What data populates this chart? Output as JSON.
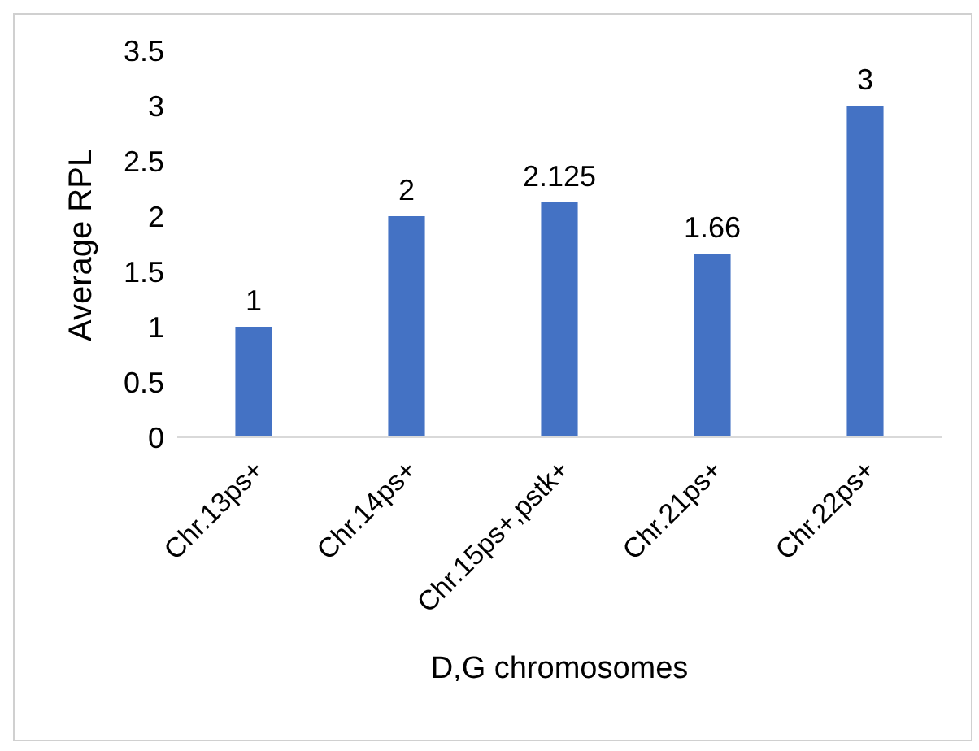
{
  "chart_data": {
    "type": "bar",
    "xlabel": "D,G chromosomes",
    "ylabel": "Average RPL",
    "categories": [
      "Chr.13ps+",
      "Chr.14ps+",
      "Chr.15ps+,pstk+",
      "Chr.21ps+",
      "Chr.22ps+"
    ],
    "values": [
      1,
      2,
      2.125,
      1.66,
      3
    ],
    "color": "#4472c4",
    "ylim": [
      0,
      3.5
    ],
    "yticks": [
      0,
      0.5,
      1,
      1.5,
      2,
      2.5,
      3,
      3.5
    ],
    "grid": false,
    "legend": false,
    "data_labels": true
  }
}
